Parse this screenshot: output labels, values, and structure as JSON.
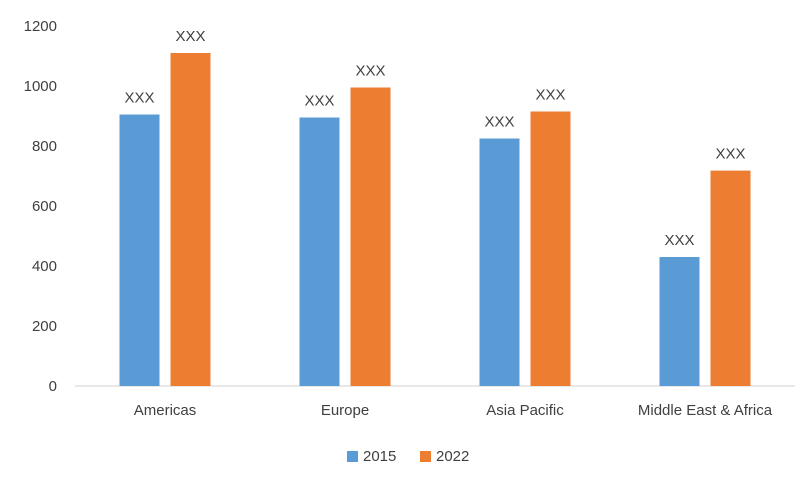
{
  "chart_data": {
    "type": "bar",
    "categories": [
      "Americas",
      "Europe",
      "Asia Pacific",
      "Middle East & Africa"
    ],
    "series": [
      {
        "name": "2015",
        "values": [
          905,
          895,
          825,
          430
        ],
        "color": "#5B9BD5",
        "data_labels": [
          "XXX",
          "XXX",
          "XXX",
          "XXX"
        ]
      },
      {
        "name": "2022",
        "values": [
          1110,
          995,
          915,
          718
        ],
        "color": "#ED7D31",
        "data_labels": [
          "XXX",
          "XXX",
          "XXX",
          "XXX"
        ]
      }
    ],
    "ylim": [
      0,
      1200
    ],
    "yticks": [
      0,
      200,
      400,
      600,
      800,
      1000,
      1200
    ],
    "grid": false,
    "legend_position": "bottom"
  }
}
